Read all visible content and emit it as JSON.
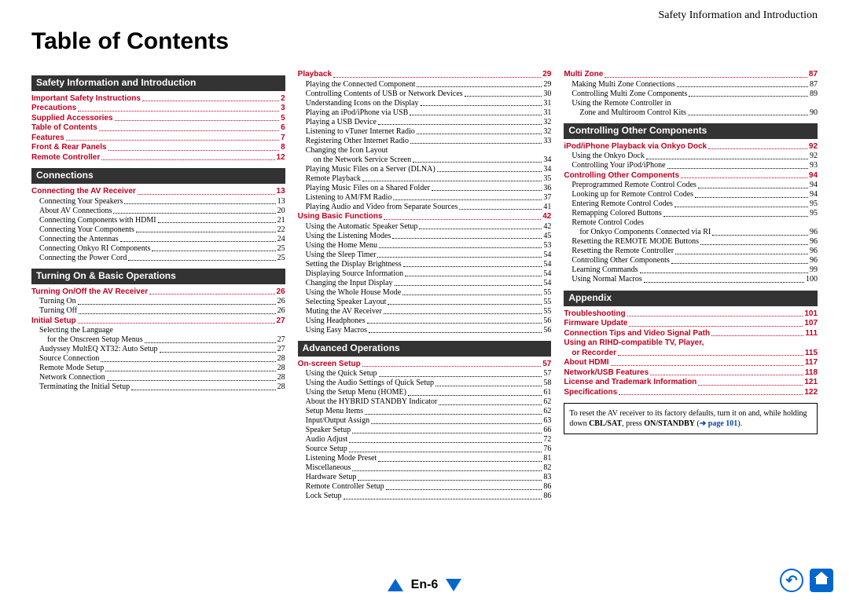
{
  "header_right": "Safety Information and Introduction",
  "title": "Table of Contents",
  "page_label": "En-6",
  "note": {
    "l1": "To reset the AV receiver to its factory defaults, turn it on and, while holding down ",
    "b1": "CBL/SAT",
    "l2": ", press ",
    "b2": "ON/STANDBY",
    "l3": " (",
    "link": "➔ page 101",
    "l4": ")."
  },
  "columns": [
    [
      {
        "type": "section",
        "text": "Safety Information and Introduction"
      },
      {
        "type": "l0",
        "t": "Important Safety Instructions",
        "p": "2"
      },
      {
        "type": "l0",
        "t": "Precautions",
        "p": "3"
      },
      {
        "type": "l0",
        "t": "Supplied Accessories",
        "p": "5"
      },
      {
        "type": "l0",
        "t": "Table of Contents",
        "p": "6"
      },
      {
        "type": "l0",
        "t": "Features",
        "p": "7"
      },
      {
        "type": "l0",
        "t": "Front & Rear Panels",
        "p": "8"
      },
      {
        "type": "l0",
        "t": "Remote Controller",
        "p": "12"
      },
      {
        "type": "section",
        "text": "Connections"
      },
      {
        "type": "l0",
        "t": "Connecting the AV Receiver",
        "p": "13"
      },
      {
        "type": "l1",
        "t": "Connecting Your Speakers",
        "p": "13"
      },
      {
        "type": "l1",
        "t": "About AV Connections",
        "p": "20"
      },
      {
        "type": "l1",
        "t": "Connecting Components with HDMI",
        "p": "21"
      },
      {
        "type": "l1",
        "t": "Connecting Your Components",
        "p": "22"
      },
      {
        "type": "l1",
        "t": "Connecting the Antennas",
        "p": "24"
      },
      {
        "type": "l1",
        "t": "Connecting Onkyo RI Components",
        "p": "25"
      },
      {
        "type": "l1",
        "t": "Connecting the Power Cord",
        "p": "25"
      },
      {
        "type": "section",
        "text": "Turning On & Basic Operations"
      },
      {
        "type": "l0",
        "t": "Turning On/Off the AV Receiver",
        "p": "26"
      },
      {
        "type": "l1",
        "t": "Turning On",
        "p": "26"
      },
      {
        "type": "l1",
        "t": "Turning Off",
        "p": "26"
      },
      {
        "type": "l0",
        "t": "Initial Setup",
        "p": "27"
      },
      {
        "type": "l1",
        "t": "Selecting the Language",
        "p": ""
      },
      {
        "type": "l2",
        "t": "for the Onscreen Setup Menus",
        "p": "27"
      },
      {
        "type": "l1",
        "t": "Audyssey MultEQ XT32: Auto Setup",
        "p": "27"
      },
      {
        "type": "l1",
        "t": "Source Connection",
        "p": "28"
      },
      {
        "type": "l1",
        "t": "Remote Mode Setup",
        "p": "28"
      },
      {
        "type": "l1",
        "t": "Network Connection",
        "p": "28"
      },
      {
        "type": "l1",
        "t": "Terminating the Initial Setup",
        "p": "28"
      }
    ],
    [
      {
        "type": "l0",
        "t": "Playback",
        "p": "29"
      },
      {
        "type": "l1",
        "t": "Playing the Connected Component",
        "p": "29"
      },
      {
        "type": "l1",
        "t": "Controlling Contents of USB or Network Devices",
        "p": "30"
      },
      {
        "type": "l1",
        "t": "Understanding Icons on the Display",
        "p": "31"
      },
      {
        "type": "l1",
        "t": "Playing an iPod/iPhone via USB",
        "p": "31"
      },
      {
        "type": "l1",
        "t": "Playing a USB Device",
        "p": "32"
      },
      {
        "type": "l1",
        "t": "Listening to vTuner Internet Radio",
        "p": "32"
      },
      {
        "type": "l1",
        "t": "Registering Other Internet Radio",
        "p": "33"
      },
      {
        "type": "l1",
        "t": "Changing the Icon Layout",
        "p": ""
      },
      {
        "type": "l2",
        "t": "on the Network Service Screen",
        "p": "34"
      },
      {
        "type": "l1",
        "t": "Playing Music Files on a Server (DLNA)",
        "p": "34"
      },
      {
        "type": "l1",
        "t": "Remote Playback",
        "p": "35"
      },
      {
        "type": "l1",
        "t": "Playing Music Files on a Shared Folder",
        "p": "36"
      },
      {
        "type": "l1",
        "t": "Listening to AM/FM Radio",
        "p": "37"
      },
      {
        "type": "l1",
        "t": "Playing Audio and Video from Separate Sources",
        "p": "41"
      },
      {
        "type": "l0",
        "t": "Using Basic Functions",
        "p": "42"
      },
      {
        "type": "l1",
        "t": "Using the Automatic Speaker Setup",
        "p": "42"
      },
      {
        "type": "l1",
        "t": "Using the Listening Modes",
        "p": "45"
      },
      {
        "type": "l1",
        "t": "Using the Home Menu",
        "p": "53"
      },
      {
        "type": "l1",
        "t": "Using the Sleep Timer",
        "p": "54"
      },
      {
        "type": "l1",
        "t": "Setting the Display Brightness",
        "p": "54"
      },
      {
        "type": "l1",
        "t": "Displaying Source Information",
        "p": "54"
      },
      {
        "type": "l1",
        "t": "Changing the Input Display",
        "p": "54"
      },
      {
        "type": "l1",
        "t": "Using the Whole House Mode",
        "p": "55"
      },
      {
        "type": "l1",
        "t": "Selecting Speaker Layout",
        "p": "55"
      },
      {
        "type": "l1",
        "t": "Muting the AV Receiver",
        "p": "55"
      },
      {
        "type": "l1",
        "t": "Using Headphones",
        "p": "56"
      },
      {
        "type": "l1",
        "t": "Using Easy Macros",
        "p": "56"
      },
      {
        "type": "section",
        "text": "Advanced Operations"
      },
      {
        "type": "l0",
        "t": "On-screen Setup",
        "p": "57"
      },
      {
        "type": "l1",
        "t": "Using the Quick Setup",
        "p": "57"
      },
      {
        "type": "l1",
        "t": "Using the Audio Settings of Quick Setup",
        "p": "58"
      },
      {
        "type": "l1",
        "t": "Using the Setup Menu (HOME)",
        "p": "61"
      },
      {
        "type": "l1",
        "t": "About the HYBRID STANDBY Indicator",
        "p": "62"
      },
      {
        "type": "l1",
        "t": "Setup Menu Items",
        "p": "62"
      },
      {
        "type": "l1",
        "t": "Input/Output Assign",
        "p": "63"
      },
      {
        "type": "l1",
        "t": "Speaker Setup",
        "p": "66"
      },
      {
        "type": "l1",
        "t": "Audio Adjust",
        "p": "72"
      },
      {
        "type": "l1",
        "t": "Source Setup",
        "p": "76"
      },
      {
        "type": "l1",
        "t": "Listening Mode Preset",
        "p": "81"
      },
      {
        "type": "l1",
        "t": "Miscellaneous",
        "p": "82"
      },
      {
        "type": "l1",
        "t": "Hardware Setup",
        "p": "83"
      },
      {
        "type": "l1",
        "t": "Remote Controller Setup",
        "p": "86"
      },
      {
        "type": "l1",
        "t": "Lock Setup",
        "p": "86"
      }
    ],
    [
      {
        "type": "l0",
        "t": "Multi Zone",
        "p": "87"
      },
      {
        "type": "l1",
        "t": "Making Multi Zone Connections",
        "p": "87"
      },
      {
        "type": "l1",
        "t": "Controlling Multi Zone Components",
        "p": "89"
      },
      {
        "type": "l1",
        "t": "Using the Remote Controller in",
        "p": ""
      },
      {
        "type": "l2",
        "t": "Zone and Multiroom Control Kits",
        "p": "90"
      },
      {
        "type": "section",
        "text": "Controlling Other Components"
      },
      {
        "type": "l0",
        "t": "iPod/iPhone Playback via Onkyo Dock",
        "p": "92"
      },
      {
        "type": "l1",
        "t": "Using the Onkyo Dock",
        "p": "92"
      },
      {
        "type": "l1",
        "t": "Controlling Your iPod/iPhone",
        "p": "93"
      },
      {
        "type": "l0",
        "t": "Controlling Other Components",
        "p": "94"
      },
      {
        "type": "l1",
        "t": "Preprogrammed Remote Control Codes",
        "p": "94"
      },
      {
        "type": "l1",
        "t": "Looking up for Remote Control Codes",
        "p": "94"
      },
      {
        "type": "l1",
        "t": "Entering Remote Control Codes",
        "p": "95"
      },
      {
        "type": "l1",
        "t": "Remapping Colored Buttons",
        "p": "95"
      },
      {
        "type": "l1",
        "t": "Remote Control Codes",
        "p": ""
      },
      {
        "type": "l2",
        "t": "for Onkyo Components Connected via RI",
        "p": "96"
      },
      {
        "type": "l1",
        "t": "Resetting the REMOTE MODE Buttons",
        "p": "96"
      },
      {
        "type": "l1",
        "t": "Resetting the Remote Controller",
        "p": "96"
      },
      {
        "type": "l1",
        "t": "Controlling Other Components",
        "p": "96"
      },
      {
        "type": "l1",
        "t": "Learning Commands",
        "p": "99"
      },
      {
        "type": "l1",
        "t": "Using Normal Macros",
        "p": "100"
      },
      {
        "type": "section",
        "text": "Appendix"
      },
      {
        "type": "l0",
        "t": "Troubleshooting",
        "p": "101"
      },
      {
        "type": "l0",
        "t": "Firmware Update",
        "p": "107"
      },
      {
        "type": "l0",
        "t": "Connection Tips and Video Signal Path",
        "p": "111"
      },
      {
        "type": "l0",
        "t": "Using an RIHD-compatible TV, Player,",
        "p": ""
      },
      {
        "type": "l0x",
        "t": "or Recorder",
        "p": "115"
      },
      {
        "type": "l0",
        "t": "About HDMI",
        "p": "117"
      },
      {
        "type": "l0",
        "t": "Network/USB Features",
        "p": "118"
      },
      {
        "type": "l0",
        "t": "License and Trademark Information",
        "p": "121"
      },
      {
        "type": "l0",
        "t": "Specifications",
        "p": "122"
      },
      {
        "type": "note"
      }
    ]
  ]
}
